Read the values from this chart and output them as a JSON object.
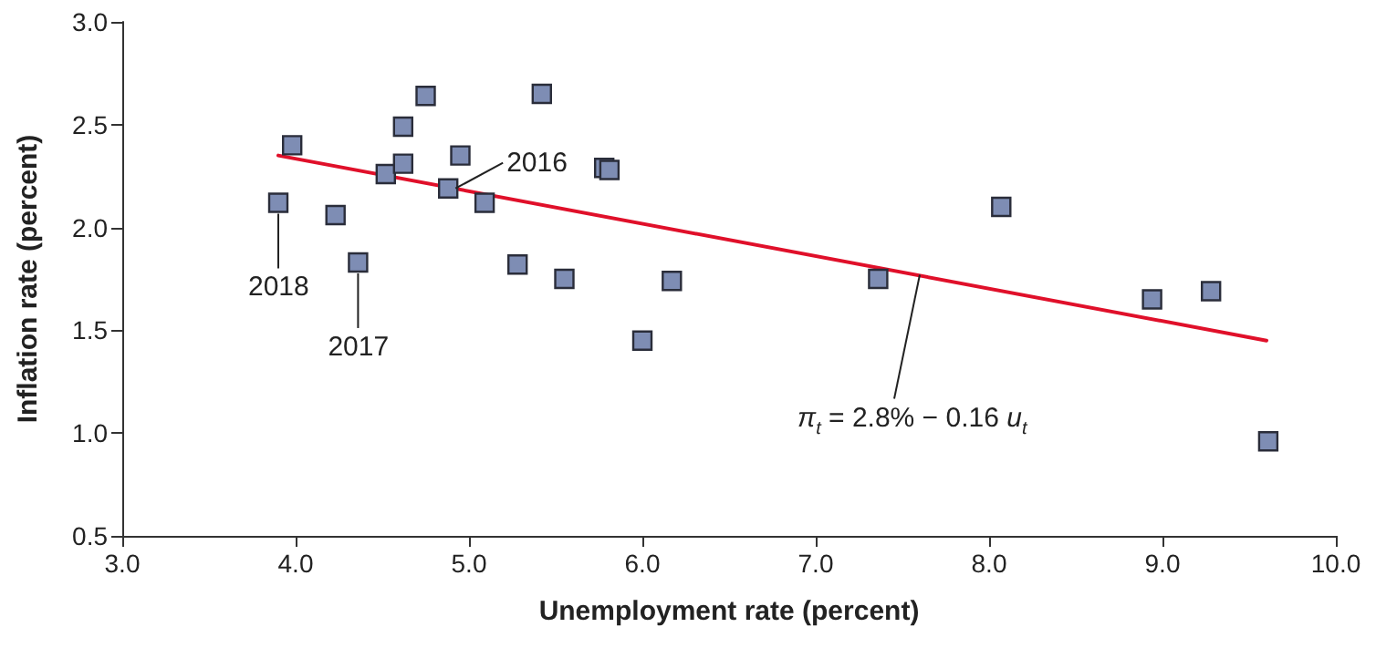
{
  "chart_data": {
    "type": "scatter",
    "xlabel": "Unemployment rate (percent)",
    "ylabel": "Inflation rate (percent)",
    "series": [
      {
        "color": "#7e8db4",
        "marker": "square",
        "x": [
          3.9,
          3.98,
          4.23,
          4.36,
          4.52,
          4.62,
          4.62,
          4.75,
          4.88,
          4.95,
          5.09,
          5.28,
          5.42,
          5.55,
          5.78,
          5.81,
          6.0,
          6.17,
          7.36,
          8.07,
          8.94,
          9.28,
          9.61
        ],
        "values": [
          2.12,
          2.4,
          2.06,
          1.83,
          2.26,
          2.49,
          2.31,
          2.64,
          2.19,
          2.35,
          2.12,
          1.82,
          2.65,
          1.75,
          2.29,
          2.28,
          1.45,
          1.74,
          1.75,
          2.1,
          1.65,
          1.69,
          0.96
        ]
      },
      {
        "type": "line",
        "color": "#e0102a",
        "x": [
          3.9,
          9.6
        ],
        "values": [
          2.35,
          1.45
        ]
      }
    ],
    "annotations": [
      {
        "text": "2018",
        "x": 3.9,
        "y": 2.12
      },
      {
        "text": "2017",
        "x": 4.36,
        "y": 1.83
      },
      {
        "text": "2016",
        "x": 4.88,
        "y": 2.19
      },
      {
        "text": "π$_{t}$ = 2.8% − 0.16 u$_{t}$",
        "x": 7.6,
        "y": 1.77
      }
    ],
    "xlim": [
      3,
      10
    ],
    "xticks": [
      {
        "value": 3,
        "label": "3.0"
      },
      {
        "value": 4,
        "label": "4.0"
      },
      {
        "value": 5,
        "label": "5.0"
      },
      {
        "value": 6,
        "label": "6.0"
      },
      {
        "value": 7,
        "label": "7.0"
      },
      {
        "value": 8,
        "label": "8.0"
      },
      {
        "value": 9,
        "label": "9.0"
      },
      {
        "value": 10,
        "label": "10.0"
      }
    ],
    "ylim": [
      0.5,
      3
    ],
    "yticks": [
      {
        "value": 0.5,
        "label": "0.5"
      },
      {
        "value": 1,
        "label": "1.0"
      },
      {
        "value": 1.5,
        "label": "1.5"
      },
      {
        "value": 2,
        "label": "2.0"
      },
      {
        "value": 2.5,
        "label": "2.5"
      },
      {
        "value": 3,
        "label": "3.0"
      }
    ],
    "grid": false
  }
}
